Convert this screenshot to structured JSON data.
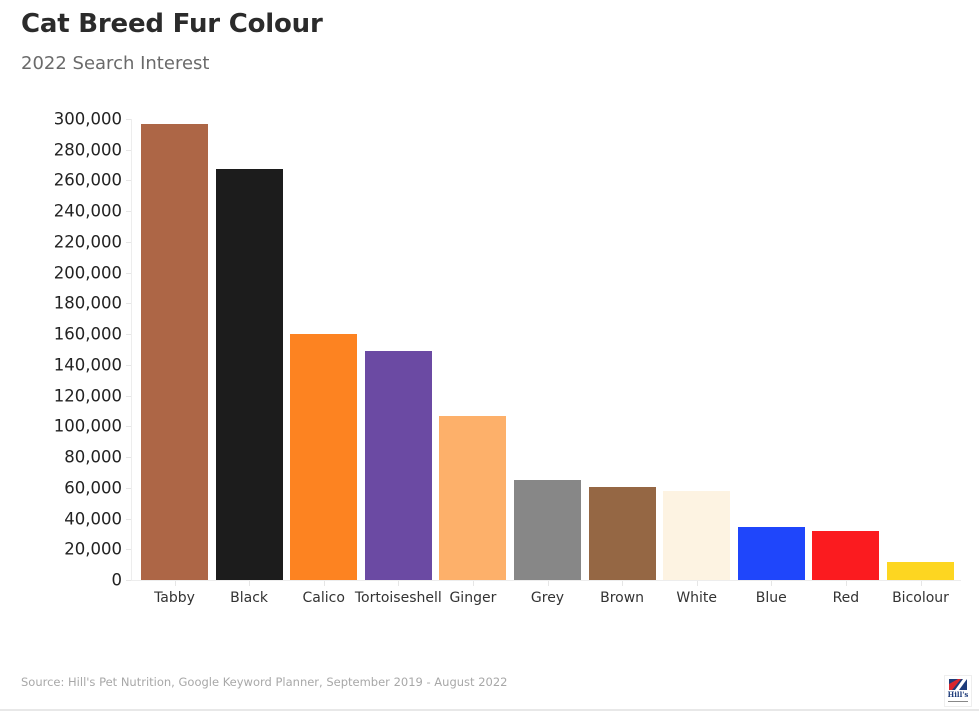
{
  "header": {
    "title": "Cat Breed Fur Colour",
    "subtitle": "2022 Search Interest"
  },
  "footer": {
    "source": "Source: Hill's Pet Nutrition, Google Keyword Planner, September 2019 - August 2022",
    "logo_text": "Hill's"
  },
  "axis": {
    "y_ticks": [
      "300,000",
      "280,000",
      "260,000",
      "240,000",
      "220,000",
      "200,000",
      "180,000",
      "160,000",
      "140,000",
      "120,000",
      "100,000",
      "80,000",
      "60,000",
      "40,000",
      "20,000",
      "0"
    ]
  },
  "chart_data": {
    "type": "bar",
    "title": "Cat Breed Fur Colour",
    "subtitle": "2022 Search Interest",
    "xlabel": "",
    "ylabel": "",
    "ylim": [
      0,
      300000
    ],
    "y_ticks": [
      0,
      20000,
      40000,
      60000,
      80000,
      100000,
      120000,
      140000,
      160000,
      180000,
      200000,
      220000,
      240000,
      260000,
      280000,
      300000
    ],
    "grid": false,
    "legend": "none",
    "categories": [
      "Tabby",
      "Black",
      "Calico",
      "Tortoiseshell",
      "Ginger",
      "Grey",
      "Brown",
      "White",
      "Blue",
      "Red",
      "Bicolour"
    ],
    "values": [
      297000,
      267500,
      160000,
      149000,
      106500,
      65000,
      60500,
      58000,
      34500,
      32000,
      11500
    ],
    "colors": [
      "#ad6646",
      "#1c1c1c",
      "#fd8321",
      "#6b4aa3",
      "#fdb06a",
      "#878787",
      "#956744",
      "#fdf3e2",
      "#1f46fb",
      "#fb1b1f",
      "#fdd621"
    ],
    "source": "Source: Hill's Pet Nutrition, Google Keyword Planner, September 2019 - August 2022"
  }
}
